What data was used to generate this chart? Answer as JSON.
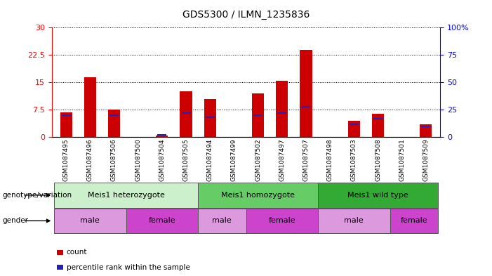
{
  "title": "GDS5300 / ILMN_1235836",
  "samples": [
    "GSM1087495",
    "GSM1087496",
    "GSM1087506",
    "GSM1087500",
    "GSM1087504",
    "GSM1087505",
    "GSM1087494",
    "GSM1087499",
    "GSM1087502",
    "GSM1087497",
    "GSM1087507",
    "GSM1087498",
    "GSM1087503",
    "GSM1087508",
    "GSM1087501",
    "GSM1087509"
  ],
  "counts": [
    6.8,
    16.5,
    7.5,
    0.0,
    0.5,
    12.5,
    10.5,
    0.0,
    12.0,
    15.5,
    24.0,
    0.0,
    4.5,
    6.5,
    0.0,
    3.5
  ],
  "percentile": [
    20,
    23,
    20,
    0,
    2,
    22,
    18,
    0,
    20,
    22,
    28,
    0,
    12,
    17,
    0,
    10
  ],
  "left_ylim": [
    0,
    30
  ],
  "right_ylim": [
    0,
    100
  ],
  "left_yticks": [
    0,
    7.5,
    15,
    22.5,
    30
  ],
  "right_yticks": [
    0,
    25,
    50,
    75,
    100
  ],
  "left_ytick_labels": [
    "0",
    "7.5",
    "15",
    "22.5",
    "30"
  ],
  "right_ytick_labels": [
    "0",
    "25",
    "50",
    "75",
    "100%"
  ],
  "bar_color": "#cc0000",
  "blue_color": "#2222bb",
  "genotype_groups": [
    {
      "label": "Meis1 heterozygote",
      "start": 0,
      "end": 5,
      "color": "#ccf0cc"
    },
    {
      "label": "Meis1 homozygote",
      "start": 6,
      "end": 10,
      "color": "#66cc66"
    },
    {
      "label": "Meis1 wild type",
      "start": 11,
      "end": 15,
      "color": "#33aa33"
    }
  ],
  "gender_groups": [
    {
      "label": "male",
      "start": 0,
      "end": 2,
      "color": "#dd99dd"
    },
    {
      "label": "female",
      "start": 3,
      "end": 5,
      "color": "#cc44cc"
    },
    {
      "label": "male",
      "start": 6,
      "end": 7,
      "color": "#dd99dd"
    },
    {
      "label": "female",
      "start": 8,
      "end": 10,
      "color": "#cc44cc"
    },
    {
      "label": "male",
      "start": 11,
      "end": 13,
      "color": "#dd99dd"
    },
    {
      "label": "female",
      "start": 14,
      "end": 15,
      "color": "#cc44cc"
    }
  ],
  "genotype_label": "genotype/variation",
  "gender_label": "gender",
  "legend_count": "count",
  "legend_percentile": "percentile rank within the sample",
  "xtick_bg": "#cccccc",
  "gap_color": "#ffffff"
}
